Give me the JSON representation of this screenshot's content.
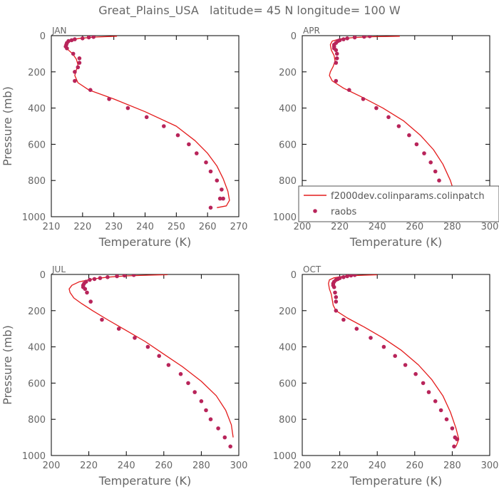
{
  "figure": {
    "title": "Great_Plains_USA   latitude= 45 N longitude= 100 W",
    "colors": {
      "model": "#e41b1b",
      "obs": "#b8245a",
      "axis": "#000000",
      "text": "#666666"
    }
  },
  "legend": {
    "model_label": "f2000dev.colinparams.colinpatch",
    "obs_label": "raobs"
  },
  "chart_data": [
    {
      "type": "line",
      "panel": "JAN",
      "title": "JAN",
      "xlabel": "Temperature (K)",
      "ylabel": "Pressure (mb)",
      "xlim": [
        210,
        270
      ],
      "ylim": [
        1000,
        0
      ],
      "xticks": [
        210,
        220,
        230,
        240,
        250,
        260,
        270
      ],
      "yticks": [
        0,
        200,
        400,
        600,
        800,
        1000
      ],
      "series": [
        {
          "name": "f2000dev.colinparams.colinpatch",
          "kind": "line",
          "x": [
            231,
            224,
            219,
            216,
            215,
            214.8,
            215.5,
            216.8,
            218,
            218.5,
            218,
            217.5,
            218.5,
            222,
            230,
            240,
            250,
            256,
            260,
            263,
            265,
            266.5,
            267,
            266,
            263
          ],
          "y": [
            3,
            8,
            15,
            25,
            40,
            60,
            80,
            100,
            130,
            160,
            190,
            220,
            260,
            300,
            350,
            420,
            500,
            580,
            650,
            720,
            790,
            860,
            910,
            940,
            950
          ]
        },
        {
          "name": "raobs",
          "kind": "scatter",
          "x": [
            223.5,
            222,
            220,
            217.5,
            216.5,
            215.5,
            215,
            214.8,
            214.6,
            215,
            217,
            219,
            219,
            218.5,
            217.5,
            217.5,
            222.5,
            228.5,
            234.5,
            240.5,
            246,
            250.5,
            254,
            256.5,
            259.5,
            261,
            263,
            264.5,
            265,
            264,
            261
          ],
          "y": [
            7,
            10,
            15,
            20,
            25,
            30,
            40,
            50,
            60,
            70,
            100,
            125,
            150,
            175,
            200,
            250,
            300,
            350,
            400,
            450,
            500,
            550,
            600,
            650,
            700,
            750,
            800,
            850,
            900,
            900,
            950
          ]
        }
      ]
    },
    {
      "type": "line",
      "panel": "APR",
      "title": "APR",
      "xlabel": "Temperature (K)",
      "ylabel": "",
      "xlim": [
        200,
        300
      ],
      "ylim": [
        1000,
        0
      ],
      "xticks": [
        200,
        220,
        240,
        260,
        280,
        300
      ],
      "yticks": [
        0,
        200,
        400,
        600,
        800,
        1000
      ],
      "series": [
        {
          "name": "f2000dev.colinparams.colinpatch",
          "kind": "line",
          "x": [
            252,
            238,
            228,
            220,
            216,
            215,
            215.5,
            217,
            217.5,
            216.5,
            215,
            214.5,
            216,
            222,
            232,
            243,
            254,
            263,
            270,
            275,
            279,
            281.5,
            282
          ],
          "y": [
            3,
            6,
            10,
            18,
            30,
            50,
            80,
            110,
            140,
            170,
            200,
            220,
            250,
            290,
            340,
            400,
            470,
            550,
            630,
            710,
            800,
            880,
            920
          ]
        },
        {
          "name": "raobs",
          "kind": "scatter",
          "x": [
            236,
            233,
            228,
            224,
            222,
            220,
            219,
            218,
            217,
            217,
            217,
            218,
            218.5,
            218.5,
            218,
            218,
            225,
            232.5,
            239.5,
            246,
            251.5,
            257,
            261,
            265,
            268.5,
            271,
            273,
            275.5,
            278,
            280,
            281
          ],
          "y": [
            3,
            6,
            10,
            15,
            20,
            25,
            30,
            40,
            50,
            60,
            70,
            80,
            100,
            125,
            150,
            250,
            300,
            350,
            400,
            450,
            500,
            550,
            600,
            650,
            700,
            750,
            800,
            850,
            880,
            900,
            950
          ]
        }
      ]
    },
    {
      "type": "line",
      "panel": "JUL",
      "title": "JUL",
      "xlabel": "Temperature (K)",
      "ylabel": "Pressure (mb)",
      "xlim": [
        200,
        300
      ],
      "ylim": [
        1000,
        0
      ],
      "xticks": [
        200,
        220,
        240,
        260,
        280,
        300
      ],
      "yticks": [
        0,
        200,
        400,
        600,
        800,
        1000
      ],
      "series": [
        {
          "name": "f2000dev.colinparams.colinpatch",
          "kind": "line",
          "x": [
            262,
            252,
            240,
            230,
            222,
            215,
            211,
            209.5,
            210,
            212,
            216,
            222,
            230,
            240,
            250,
            260,
            270,
            280,
            288,
            293,
            296,
            297
          ],
          "y": [
            1,
            4,
            8,
            15,
            25,
            40,
            60,
            80,
            100,
            130,
            160,
            200,
            250,
            310,
            370,
            440,
            510,
            590,
            670,
            750,
            830,
            900
          ]
        },
        {
          "name": "raobs",
          "kind": "scatter",
          "x": [
            244,
            239,
            235,
            230,
            226,
            223,
            220.5,
            218.5,
            217.5,
            217,
            217,
            218,
            219,
            221,
            227,
            236,
            244.5,
            251.5,
            257.5,
            262.5,
            269,
            273,
            276.5,
            280,
            282.5,
            285,
            289,
            292.5,
            295.5
          ],
          "y": [
            3,
            6,
            10,
            15,
            20,
            25,
            30,
            40,
            50,
            60,
            70,
            80,
            100,
            150,
            250,
            300,
            350,
            400,
            450,
            500,
            550,
            600,
            650,
            700,
            750,
            800,
            850,
            900,
            950
          ]
        }
      ]
    },
    {
      "type": "line",
      "panel": "OCT",
      "title": "OCT",
      "xlabel": "Temperature (K)",
      "ylabel": "",
      "xlim": [
        200,
        300
      ],
      "ylim": [
        1000,
        0
      ],
      "xticks": [
        200,
        220,
        240,
        260,
        280,
        300
      ],
      "yticks": [
        0,
        200,
        400,
        600,
        800,
        1000
      ],
      "series": [
        {
          "name": "f2000dev.colinparams.colinpatch",
          "kind": "line",
          "x": [
            240,
            230,
            222,
            217,
            214.5,
            214,
            214.5,
            215.5,
            216,
            216.5,
            218,
            224,
            233,
            243,
            253,
            262,
            269,
            275,
            279,
            282,
            283.5,
            282
          ],
          "y": [
            2,
            5,
            10,
            18,
            30,
            50,
            80,
            110,
            140,
            170,
            200,
            240,
            290,
            350,
            420,
            500,
            580,
            670,
            760,
            850,
            910,
            950
          ]
        },
        {
          "name": "raobs",
          "kind": "scatter",
          "x": [
            228,
            226,
            224,
            222,
            220,
            219,
            218,
            217,
            216.5,
            216.5,
            217,
            217.5,
            218,
            218,
            218,
            222,
            229,
            236.5,
            243.5,
            249.5,
            255,
            260.5,
            264.5,
            267.5,
            271,
            274,
            277,
            280,
            281.5,
            282.5,
            281
          ],
          "y": [
            3,
            6,
            10,
            15,
            20,
            25,
            30,
            40,
            50,
            60,
            70,
            100,
            125,
            150,
            200,
            250,
            300,
            350,
            400,
            450,
            500,
            550,
            600,
            650,
            700,
            750,
            800,
            850,
            900,
            910,
            950
          ]
        }
      ]
    }
  ]
}
